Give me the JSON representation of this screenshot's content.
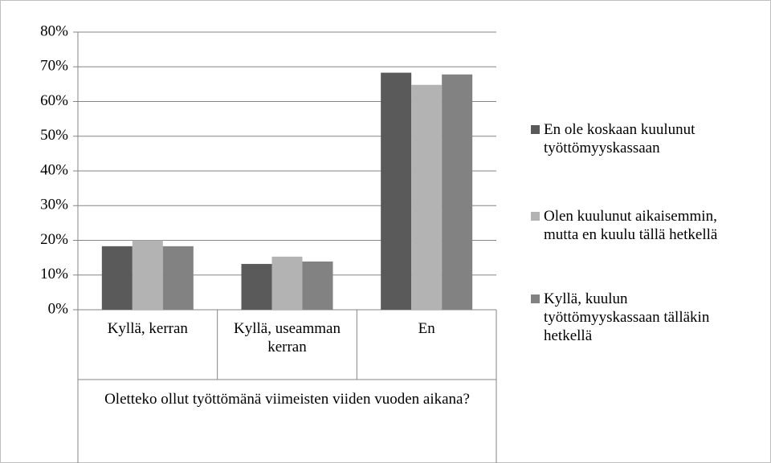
{
  "chart_data": {
    "type": "bar",
    "x_label": "Oletteko ollut työttömänä viimeisten viiden vuoden aikana?",
    "categories": [
      "Kyllä, kerran",
      "Kyllä, useamman kerran",
      "En"
    ],
    "series": [
      {
        "name": "En ole koskaan kuulunut työttömyyskassaan",
        "color": "#5a5a5a",
        "values": [
          18.3,
          13.2,
          68.3
        ]
      },
      {
        "name": "Olen kuulunut aikaisemmin, mutta en kuulu tällä hetkellä",
        "color": "#b3b3b3",
        "values": [
          20.0,
          15.3,
          64.8
        ]
      },
      {
        "name": "Kyllä, kuulun työttömyyskassaan tälläkin hetkellä",
        "color": "#828282",
        "values": [
          18.3,
          13.9,
          67.8
        ]
      }
    ],
    "ylim": [
      0,
      80
    ],
    "yticks": [
      {
        "value": 0,
        "label": "0%"
      },
      {
        "value": 10,
        "label": "10%"
      },
      {
        "value": 20,
        "label": "20%"
      },
      {
        "value": 30,
        "label": "30%"
      },
      {
        "value": 40,
        "label": "40%"
      },
      {
        "value": 50,
        "label": "50%"
      },
      {
        "value": 60,
        "label": "60%"
      },
      {
        "value": 70,
        "label": "70%"
      },
      {
        "value": 80,
        "label": "80%"
      }
    ],
    "grid": true,
    "legend": "right"
  }
}
